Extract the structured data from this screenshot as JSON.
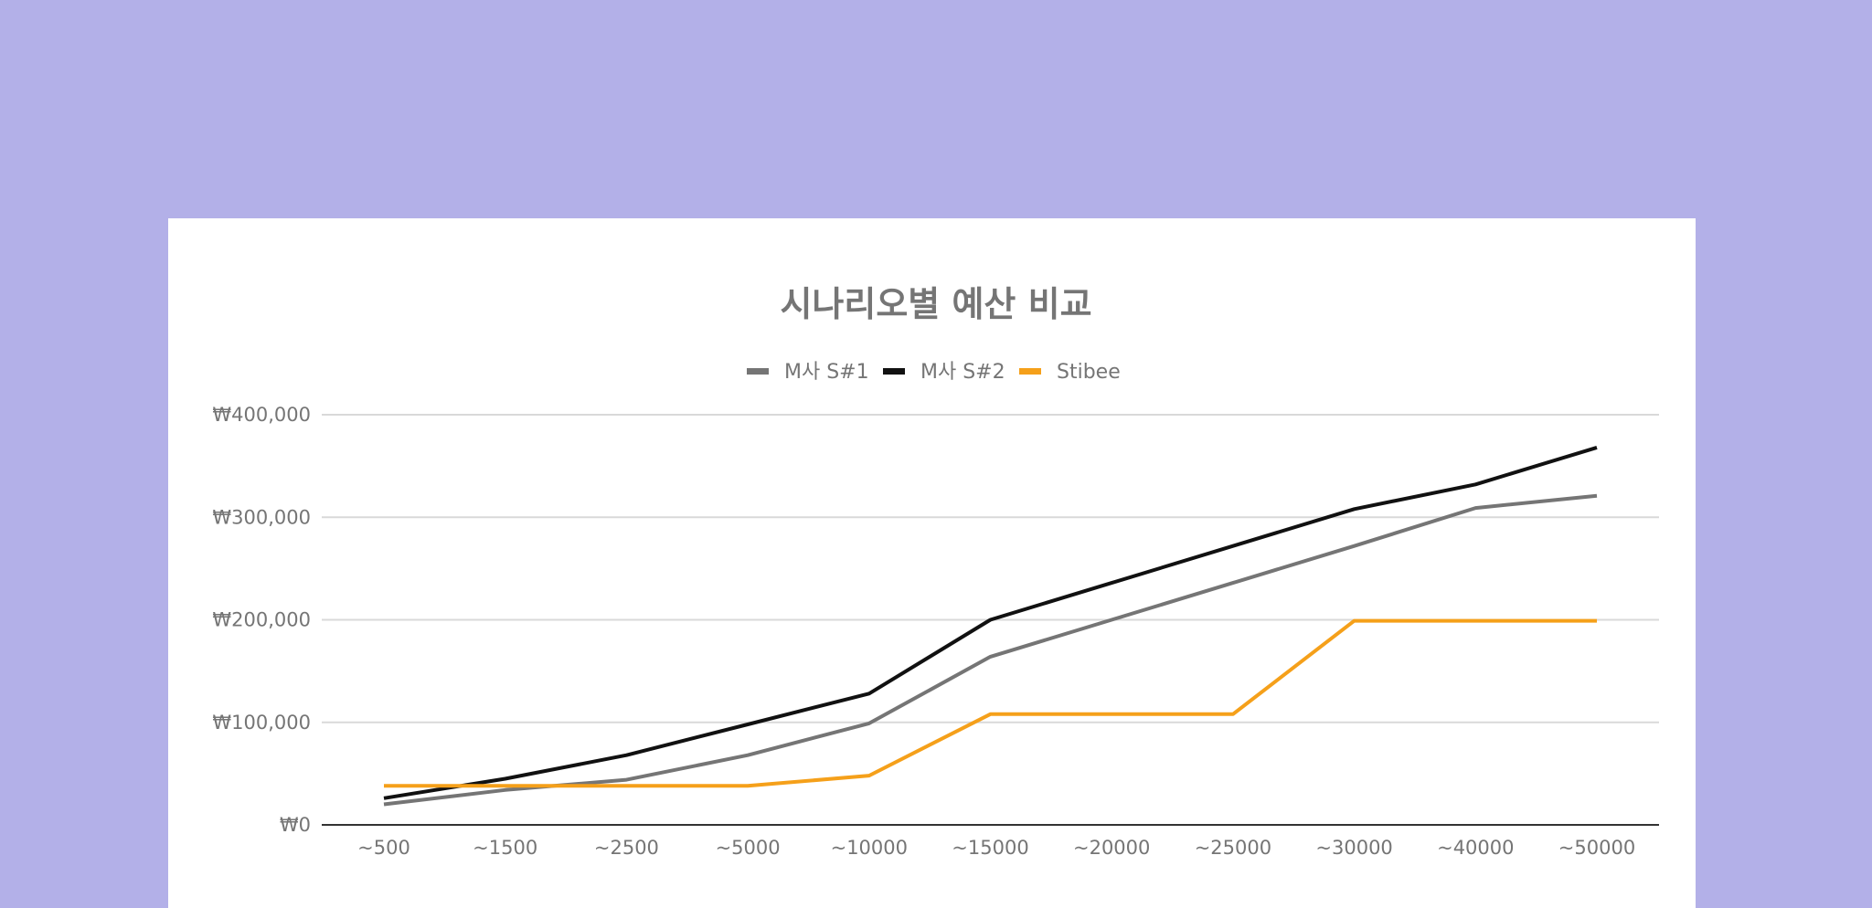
{
  "chart_data": {
    "type": "line",
    "title": "시나리오별 예산 비교",
    "xlabel": "",
    "ylabel": "",
    "categories": [
      "~500",
      "~1500",
      "~2500",
      "~5000",
      "~10000",
      "~15000",
      "~20000",
      "~25000",
      "~30000",
      "~40000",
      "~50000"
    ],
    "ylim": [
      0,
      400000
    ],
    "yticks": [
      {
        "value": 0,
        "label": "₩0"
      },
      {
        "value": 100000,
        "label": "₩100,000"
      },
      {
        "value": 200000,
        "label": "₩200,000"
      },
      {
        "value": 300000,
        "label": "₩300,000"
      },
      {
        "value": 400000,
        "label": "₩400,000"
      }
    ],
    "grid": true,
    "legend_position": "top",
    "series": [
      {
        "name": "M사 S#1",
        "color": "#757575",
        "values": [
          20000,
          34000,
          44000,
          68000,
          99000,
          164000,
          200000,
          236000,
          272000,
          309000,
          321000
        ]
      },
      {
        "name": "M사 S#2",
        "color": "#111111",
        "values": [
          26000,
          45000,
          68000,
          98000,
          128000,
          200000,
          236000,
          272000,
          308000,
          332000,
          368000
        ]
      },
      {
        "name": "Stibee",
        "color": "#f5a01a",
        "values": [
          38000,
          38000,
          38000,
          38000,
          48000,
          108000,
          108000,
          108000,
          199000,
          199000,
          199000
        ]
      }
    ]
  }
}
